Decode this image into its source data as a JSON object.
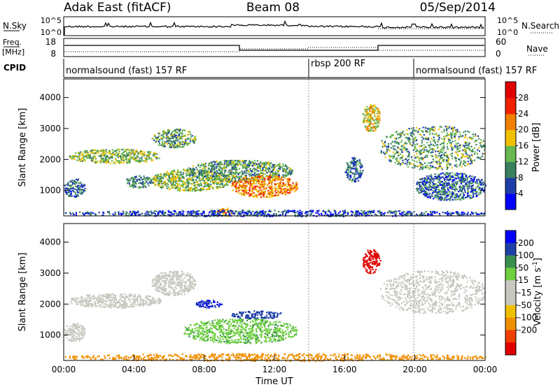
{
  "header": {
    "station": "Adak East (fitACF)",
    "beam": "Beam 08",
    "date": "05/Sep/2014"
  },
  "strips": {
    "noise": {
      "left_label": "N.Sky",
      "right_label": "N.Search",
      "ticks_left": [
        "10^5",
        "10^0"
      ],
      "ticks_right": [
        "10^5",
        "10^0"
      ]
    },
    "freq": {
      "left_label_1": "Freq.",
      "left_label_2": "[MHz]",
      "right_label": "Nave",
      "ticks_left": [
        "18",
        "8"
      ],
      "ticks_right": [
        "60",
        "0"
      ]
    },
    "cpid": {
      "label": "CPID",
      "segments": [
        {
          "name": "normalsound (fast) 157 RF",
          "start_hour": 0
        },
        {
          "name": "rbsp 200 RF",
          "start_hour": 14
        },
        {
          "name": "normalsound (fast) 157 RF",
          "start_hour": 20
        }
      ]
    }
  },
  "chart_data": [
    {
      "type": "heatmap",
      "name": "Power",
      "xlabel": "",
      "ylabel": "Slant Range [km]",
      "xlim": [
        0,
        24
      ],
      "ylim": [
        180,
        4600
      ],
      "yticks": [
        "1000",
        "2000",
        "3000",
        "4000"
      ],
      "colorbar": {
        "label": "Power [dB]",
        "ticks": [
          "4",
          "8",
          "12",
          "16",
          "20",
          "24",
          "28"
        ],
        "colors": [
          "#0000ff",
          "#1f3fa8",
          "#3a7f5f",
          "#67b84f",
          "#f0c000",
          "#f08000",
          "#f02000",
          "#e00000"
        ],
        "range": [
          0,
          32
        ]
      },
      "regions": [
        {
          "t0": 0.3,
          "t1": 5.5,
          "r0": 1900,
          "r1": 2350,
          "level": 14
        },
        {
          "t0": 5.0,
          "t1": 7.5,
          "r0": 2400,
          "r1": 3000,
          "level": 12
        },
        {
          "t0": 3.5,
          "t1": 5.0,
          "r0": 1100,
          "r1": 1500,
          "level": 10
        },
        {
          "t0": 0.0,
          "t1": 1.2,
          "r0": 800,
          "r1": 1400,
          "level": 8
        },
        {
          "t0": 5.0,
          "t1": 9.5,
          "r0": 1000,
          "r1": 1700,
          "level": 14
        },
        {
          "t0": 7.0,
          "t1": 13.0,
          "r0": 1300,
          "r1": 2000,
          "level": 12
        },
        {
          "t0": 9.5,
          "t1": 13.3,
          "r0": 800,
          "r1": 1500,
          "level": 22
        },
        {
          "t0": 8.7,
          "t1": 9.6,
          "r0": 180,
          "r1": 450,
          "level": 20
        },
        {
          "t0": 16.0,
          "t1": 17.0,
          "r0": 1300,
          "r1": 2100,
          "level": 8
        },
        {
          "t0": 17.0,
          "t1": 18.0,
          "r0": 2900,
          "r1": 3800,
          "level": 18
        },
        {
          "t0": 18.0,
          "t1": 24.0,
          "r0": 1700,
          "r1": 3100,
          "level": 12
        },
        {
          "t0": 20.0,
          "t1": 24.0,
          "r0": 700,
          "r1": 1600,
          "level": 8
        },
        {
          "t0": 0.0,
          "t1": 24.0,
          "r0": 180,
          "r1": 380,
          "level": 6
        }
      ]
    },
    {
      "type": "heatmap",
      "name": "Velocity",
      "xlabel": "Time UT",
      "ylabel": "Slant Range [km]",
      "xlim": [
        0,
        24
      ],
      "ylim": [
        180,
        4600
      ],
      "yticks": [
        "1000",
        "2000",
        "3000",
        "4000"
      ],
      "xticks": [
        "00:00",
        "04:00",
        "08:00",
        "12:00",
        "16:00",
        "20:00",
        "00:00"
      ],
      "colorbar": {
        "label": "Velocity [m s",
        "label_sup": "-1",
        "label_end": "]",
        "ticks": [
          "200",
          "100",
          "50",
          "15",
          "-15",
          "-50",
          "-100",
          "-200"
        ],
        "colors": [
          "#0000ff",
          "#1f3fa8",
          "#3a8f4f",
          "#6fd040",
          "#c8c8c0",
          "#c8c8c0",
          "#f0c000",
          "#f09000",
          "#f04000",
          "#e00000"
        ]
      },
      "regions": [
        {
          "t0": 0.3,
          "t1": 5.5,
          "r0": 1900,
          "r1": 2350,
          "vel": 0
        },
        {
          "t0": 5.0,
          "t1": 7.5,
          "r0": 2300,
          "r1": 3100,
          "vel": 0
        },
        {
          "t0": 0.0,
          "t1": 1.2,
          "r0": 800,
          "r1": 1400,
          "vel": 0
        },
        {
          "t0": 6.8,
          "t1": 13.3,
          "r0": 750,
          "r1": 1550,
          "vel": 40
        },
        {
          "t0": 9.5,
          "t1": 12.5,
          "r0": 1550,
          "r1": 1800,
          "vel": 180
        },
        {
          "t0": 7.5,
          "t1": 9.0,
          "r0": 1900,
          "r1": 2150,
          "vel": 200
        },
        {
          "t0": 17.0,
          "t1": 18.0,
          "r0": 3000,
          "r1": 3800,
          "vel": -250
        },
        {
          "t0": 18.0,
          "t1": 24.0,
          "r0": 1700,
          "r1": 3100,
          "vel": 0
        },
        {
          "t0": 0.0,
          "t1": 24.0,
          "r0": 180,
          "r1": 420,
          "vel": -70
        }
      ]
    }
  ]
}
